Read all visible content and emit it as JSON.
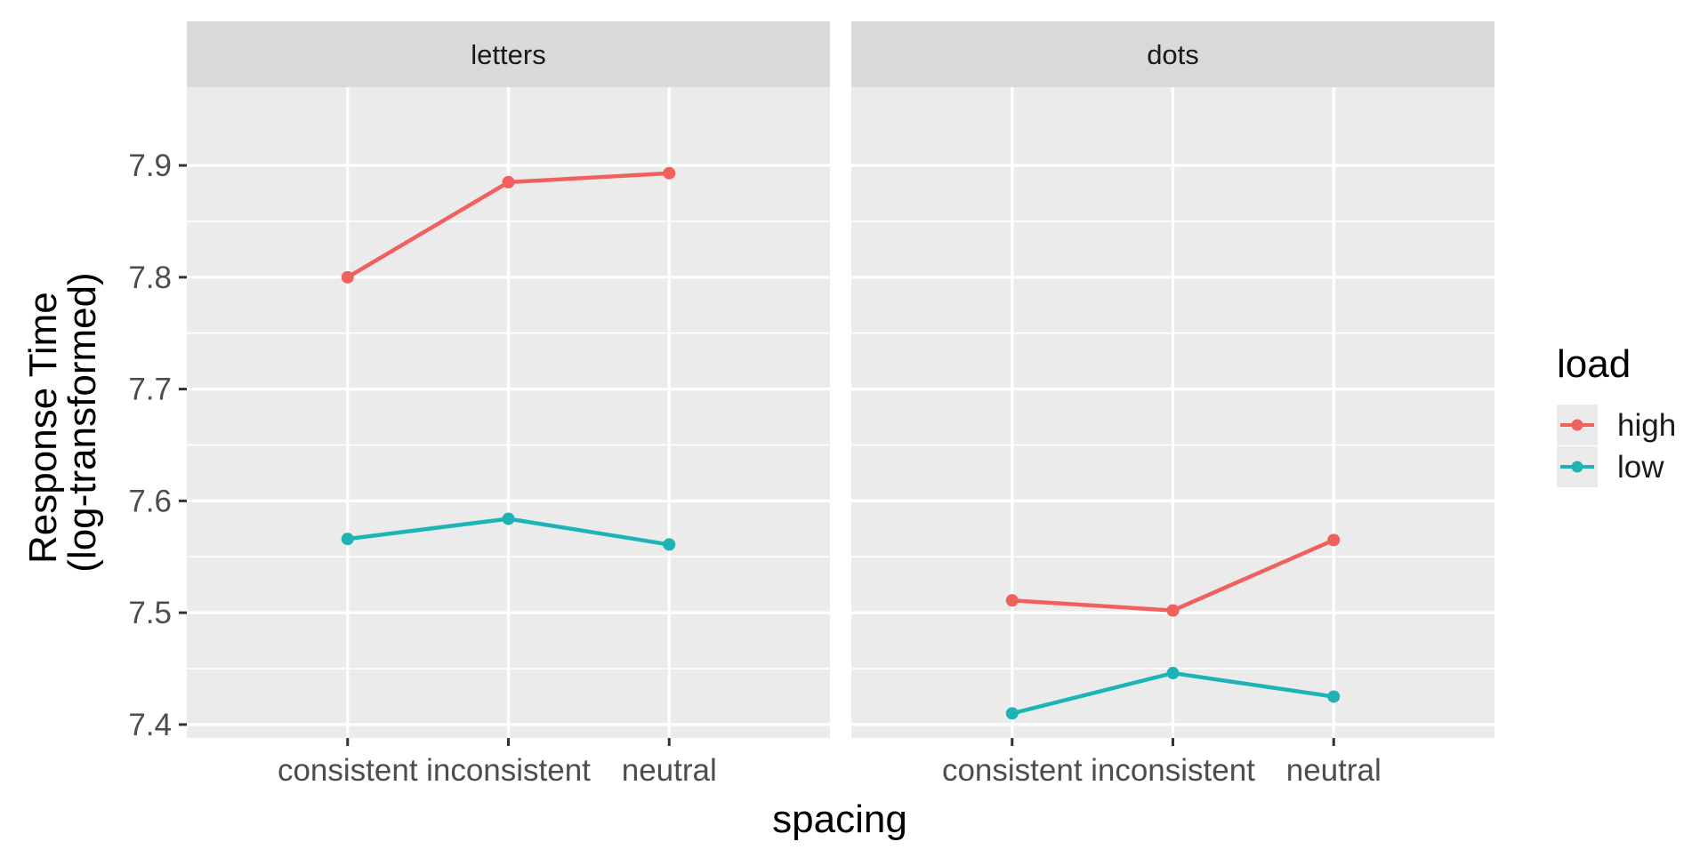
{
  "chart_data": {
    "type": "line",
    "x_axis_title": "spacing",
    "y_axis_title_lines": [
      "Response Time",
      "(log-transformed)"
    ],
    "categories": [
      "consistent",
      "inconsistent",
      "neutral"
    ],
    "y_ticks": [
      7.4,
      7.5,
      7.6,
      7.7,
      7.8,
      7.9
    ],
    "y_tick_labels": [
      "7.4",
      "7.5",
      "7.6",
      "7.7",
      "7.8",
      "7.9"
    ],
    "ylim": [
      7.388,
      7.97
    ],
    "grid": true,
    "legend": {
      "title": "load",
      "placement": "right",
      "entries": [
        {
          "name": "high",
          "color": "#F0605C"
        },
        {
          "name": "low",
          "color": "#1EB3B6"
        }
      ]
    },
    "panels": [
      {
        "title": "letters",
        "series": [
          {
            "name": "high",
            "color": "#F0605C",
            "values": [
              7.8,
              7.885,
              7.893
            ]
          },
          {
            "name": "low",
            "color": "#1EB3B6",
            "values": [
              7.566,
              7.584,
              7.561
            ]
          }
        ]
      },
      {
        "title": "dots",
        "series": [
          {
            "name": "high",
            "color": "#F0605C",
            "values": [
              7.511,
              7.502,
              7.565
            ]
          },
          {
            "name": "low",
            "color": "#1EB3B6",
            "values": [
              7.41,
              7.446,
              7.425
            ]
          }
        ]
      }
    ]
  }
}
